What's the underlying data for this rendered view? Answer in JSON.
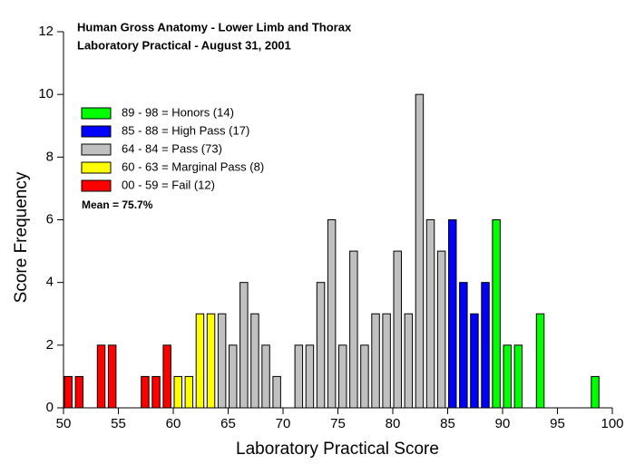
{
  "chart_data": {
    "type": "bar",
    "title": "Human Gross Anatomy - Lower Limb and Thorax",
    "subtitle": "Laboratory Practical - August 31, 2001",
    "annotation": "Mean = 75.7%",
    "x_label": "Laboratory Practical Score",
    "y_label": "Score Frequency",
    "xlim": [
      50,
      100
    ],
    "xticks": [
      50,
      55,
      60,
      65,
      70,
      75,
      80,
      85,
      90,
      95,
      100
    ],
    "ylim": [
      0,
      12
    ],
    "yticks": [
      0,
      2,
      4,
      6,
      8,
      10,
      12
    ],
    "series": [
      {
        "name": "89 - 98 = Honors (14)",
        "color": "#00ff00",
        "x": [
          89,
          90,
          91,
          93,
          98
        ],
        "values": [
          6,
          2,
          2,
          3,
          1
        ]
      },
      {
        "name": "85 - 88 = High Pass (17)",
        "color": "#0000ff",
        "x": [
          85,
          86,
          87,
          88
        ],
        "values": [
          6,
          4,
          3,
          4
        ]
      },
      {
        "name": "64 - 84 = Pass (73)",
        "color": "#c0c0c0",
        "x": [
          64,
          65,
          66,
          67,
          68,
          69,
          71,
          72,
          73,
          74,
          75,
          76,
          77,
          78,
          79,
          80,
          81,
          82,
          83,
          84
        ],
        "values": [
          3,
          2,
          4,
          3,
          2,
          1,
          2,
          2,
          4,
          6,
          2,
          5,
          2,
          3,
          3,
          5,
          3,
          10,
          6,
          5
        ]
      },
      {
        "name": "60 - 63 = Marginal Pass (8)",
        "color": "#ffff00",
        "x": [
          60,
          61,
          62,
          63
        ],
        "values": [
          1,
          1,
          3,
          3
        ]
      },
      {
        "name": "00 - 59 = Fail (12)",
        "color": "#ff0000",
        "x": [
          50,
          51,
          53,
          54,
          57,
          58,
          59
        ],
        "values": [
          1,
          1,
          2,
          2,
          1,
          1,
          2
        ]
      }
    ]
  }
}
